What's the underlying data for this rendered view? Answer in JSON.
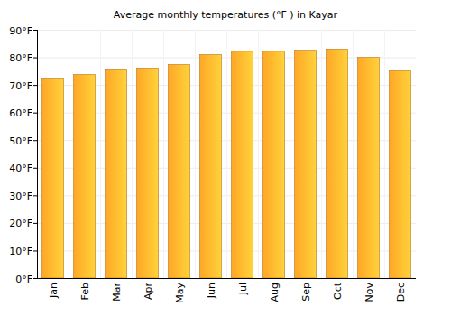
{
  "chart_data": {
    "type": "bar",
    "title": "Average monthly temperatures (°F ) in Kayar",
    "categories": [
      "Jan",
      "Feb",
      "Mar",
      "Apr",
      "May",
      "Jun",
      "Jul",
      "Aug",
      "Sep",
      "Oct",
      "Nov",
      "Dec"
    ],
    "values": [
      72.5,
      73.8,
      75.8,
      76.1,
      77.4,
      81.0,
      82.2,
      82.2,
      82.6,
      83.0,
      80.0,
      75.2
    ],
    "color": "#ffa726",
    "ylim": [
      0,
      90
    ],
    "yticks": [
      {
        "value": 0,
        "label": "0°F"
      },
      {
        "value": 10,
        "label": "10°F"
      },
      {
        "value": 20,
        "label": "20°F"
      },
      {
        "value": 30,
        "label": "30°F"
      },
      {
        "value": 40,
        "label": "40°F"
      },
      {
        "value": 50,
        "label": "50°F"
      },
      {
        "value": 60,
        "label": "60°F"
      },
      {
        "value": 70,
        "label": "70°F"
      },
      {
        "value": 80,
        "label": "80°F"
      },
      {
        "value": 90,
        "label": "90°F"
      }
    ],
    "grid": true
  }
}
